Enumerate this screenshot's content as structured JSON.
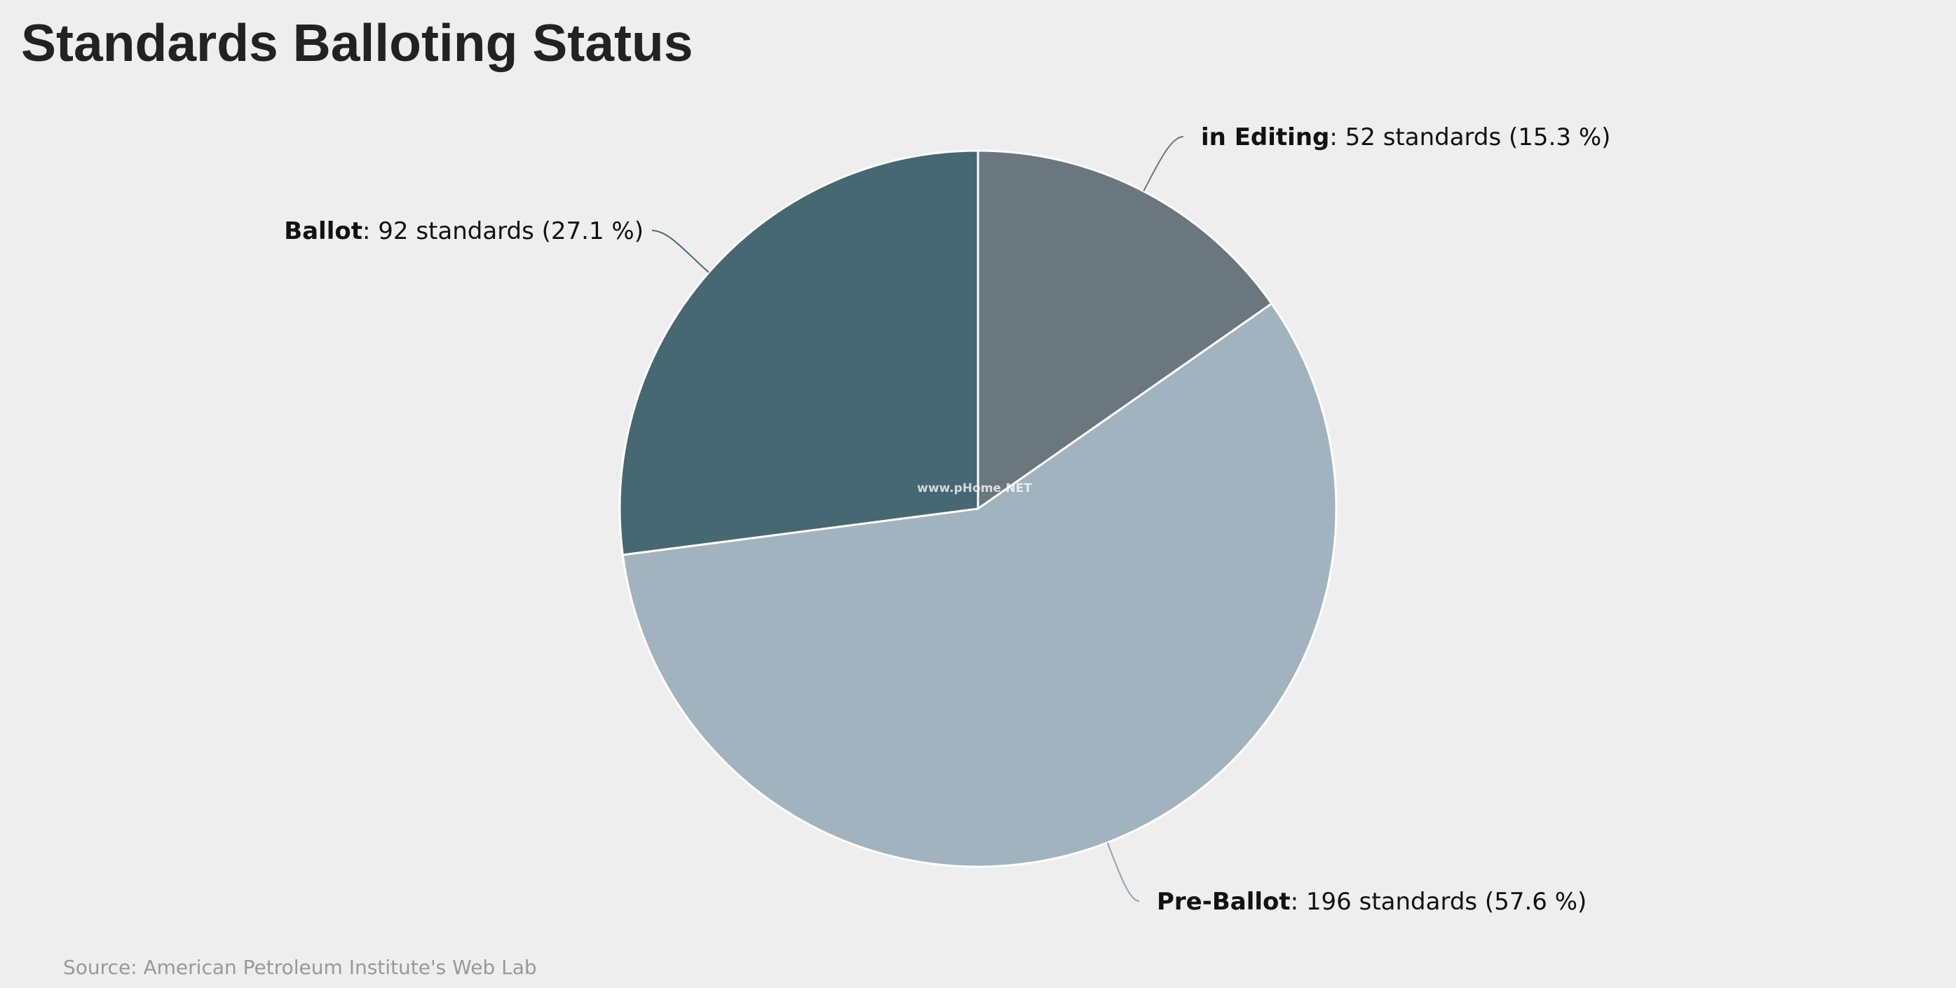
{
  "chart_data": {
    "type": "pie",
    "title": "Standards Balloting Status",
    "unit": "standards",
    "slices": [
      {
        "name": "in Editing",
        "value": 52,
        "percent": "15.3",
        "color": "#6a777f",
        "line_color": "#6a777f"
      },
      {
        "name": "Pre-Ballot",
        "value": 196,
        "percent": "57.6",
        "color": "#a0b3be",
        "line_color": "#8fa4b0"
      },
      {
        "name": "Ballot",
        "value": 92,
        "percent": "27.1",
        "color": "#456872",
        "line_color": "#456872"
      }
    ],
    "source": "Source: American Petroleum Institute's Web Lab",
    "watermark": "www.pHome.NET"
  },
  "colors": {
    "background": "#eeeeee",
    "slice_border": "#ffffff",
    "title": "#222222",
    "source": "#999999"
  }
}
